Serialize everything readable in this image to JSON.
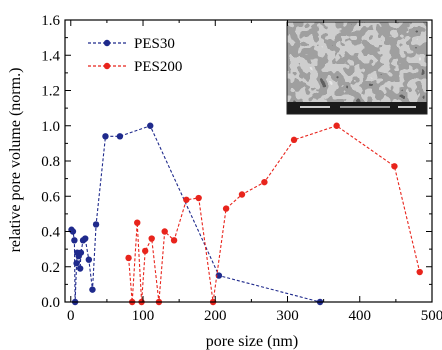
{
  "chart_data": {
    "type": "line",
    "xlabel": "pore size (nm)",
    "ylabel": "relative pore volume (norm.)",
    "xlim": [
      -8,
      500
    ],
    "ylim": [
      0,
      1.6
    ],
    "x_ticks": [
      0,
      100,
      200,
      300,
      400,
      500
    ],
    "y_ticks": [
      0.0,
      0.2,
      0.4,
      0.6,
      0.8,
      1.0,
      1.2,
      1.4,
      1.6
    ],
    "grid": false,
    "legend_position": "top-left",
    "inset": "SEM micrograph of porous membrane (top-right)",
    "series": [
      {
        "name": "PES30",
        "color": "#1f2a8c",
        "line_style": "dashed",
        "marker": "circle",
        "points": [
          [
            1,
            0.41
          ],
          [
            3,
            0.4
          ],
          [
            5,
            0.35
          ],
          [
            6,
            0.0
          ],
          [
            8,
            0.22
          ],
          [
            9,
            0.28
          ],
          [
            11,
            0.26
          ],
          [
            13,
            0.19
          ],
          [
            14,
            0.28
          ],
          [
            17,
            0.35
          ],
          [
            20,
            0.36
          ],
          [
            25,
            0.24
          ],
          [
            30,
            0.07
          ],
          [
            35,
            0.44
          ],
          [
            48,
            0.94
          ],
          [
            68,
            0.94
          ],
          [
            110,
            1.0
          ],
          [
            205,
            0.15
          ],
          [
            345,
            0.0
          ]
        ]
      },
      {
        "name": "PES200",
        "color": "#e8241c",
        "line_style": "dashed",
        "marker": "circle",
        "points": [
          [
            80,
            0.25
          ],
          [
            85,
            0.0
          ],
          [
            92,
            0.45
          ],
          [
            98,
            0.0
          ],
          [
            103,
            0.29
          ],
          [
            112,
            0.36
          ],
          [
            122,
            0.0
          ],
          [
            130,
            0.4
          ],
          [
            143,
            0.35
          ],
          [
            160,
            0.58
          ],
          [
            177,
            0.59
          ],
          [
            197,
            0.0
          ],
          [
            215,
            0.53
          ],
          [
            237,
            0.61
          ],
          [
            268,
            0.68
          ],
          [
            309,
            0.92
          ],
          [
            368,
            1.0
          ],
          [
            448,
            0.77
          ],
          [
            483,
            0.17
          ]
        ]
      }
    ]
  }
}
